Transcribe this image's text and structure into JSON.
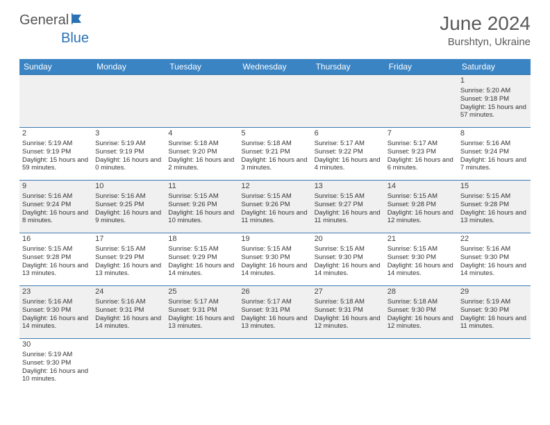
{
  "brand": {
    "part1": "General",
    "part2": "Blue",
    "mark_color": "#2a72b5"
  },
  "title": "June 2024",
  "location": "Burshtyn, Ukraine",
  "colors": {
    "header_bg": "#3a84c4",
    "header_text": "#ffffff",
    "row_alt_bg": "#f0f0f0",
    "row_border": "#3a78b0",
    "text": "#333333",
    "title_text": "#595959"
  },
  "day_headers": [
    "Sunday",
    "Monday",
    "Tuesday",
    "Wednesday",
    "Thursday",
    "Friday",
    "Saturday"
  ],
  "weeks": [
    [
      null,
      null,
      null,
      null,
      null,
      null,
      {
        "n": "1",
        "rise": "Sunrise: 5:20 AM",
        "set": "Sunset: 9:18 PM",
        "dl": "Daylight: 15 hours and 57 minutes."
      }
    ],
    [
      {
        "n": "2",
        "rise": "Sunrise: 5:19 AM",
        "set": "Sunset: 9:19 PM",
        "dl": "Daylight: 15 hours and 59 minutes."
      },
      {
        "n": "3",
        "rise": "Sunrise: 5:19 AM",
        "set": "Sunset: 9:19 PM",
        "dl": "Daylight: 16 hours and 0 minutes."
      },
      {
        "n": "4",
        "rise": "Sunrise: 5:18 AM",
        "set": "Sunset: 9:20 PM",
        "dl": "Daylight: 16 hours and 2 minutes."
      },
      {
        "n": "5",
        "rise": "Sunrise: 5:18 AM",
        "set": "Sunset: 9:21 PM",
        "dl": "Daylight: 16 hours and 3 minutes."
      },
      {
        "n": "6",
        "rise": "Sunrise: 5:17 AM",
        "set": "Sunset: 9:22 PM",
        "dl": "Daylight: 16 hours and 4 minutes."
      },
      {
        "n": "7",
        "rise": "Sunrise: 5:17 AM",
        "set": "Sunset: 9:23 PM",
        "dl": "Daylight: 16 hours and 6 minutes."
      },
      {
        "n": "8",
        "rise": "Sunrise: 5:16 AM",
        "set": "Sunset: 9:24 PM",
        "dl": "Daylight: 16 hours and 7 minutes."
      }
    ],
    [
      {
        "n": "9",
        "rise": "Sunrise: 5:16 AM",
        "set": "Sunset: 9:24 PM",
        "dl": "Daylight: 16 hours and 8 minutes."
      },
      {
        "n": "10",
        "rise": "Sunrise: 5:16 AM",
        "set": "Sunset: 9:25 PM",
        "dl": "Daylight: 16 hours and 9 minutes."
      },
      {
        "n": "11",
        "rise": "Sunrise: 5:15 AM",
        "set": "Sunset: 9:26 PM",
        "dl": "Daylight: 16 hours and 10 minutes."
      },
      {
        "n": "12",
        "rise": "Sunrise: 5:15 AM",
        "set": "Sunset: 9:26 PM",
        "dl": "Daylight: 16 hours and 11 minutes."
      },
      {
        "n": "13",
        "rise": "Sunrise: 5:15 AM",
        "set": "Sunset: 9:27 PM",
        "dl": "Daylight: 16 hours and 11 minutes."
      },
      {
        "n": "14",
        "rise": "Sunrise: 5:15 AM",
        "set": "Sunset: 9:28 PM",
        "dl": "Daylight: 16 hours and 12 minutes."
      },
      {
        "n": "15",
        "rise": "Sunrise: 5:15 AM",
        "set": "Sunset: 9:28 PM",
        "dl": "Daylight: 16 hours and 13 minutes."
      }
    ],
    [
      {
        "n": "16",
        "rise": "Sunrise: 5:15 AM",
        "set": "Sunset: 9:28 PM",
        "dl": "Daylight: 16 hours and 13 minutes."
      },
      {
        "n": "17",
        "rise": "Sunrise: 5:15 AM",
        "set": "Sunset: 9:29 PM",
        "dl": "Daylight: 16 hours and 13 minutes."
      },
      {
        "n": "18",
        "rise": "Sunrise: 5:15 AM",
        "set": "Sunset: 9:29 PM",
        "dl": "Daylight: 16 hours and 14 minutes."
      },
      {
        "n": "19",
        "rise": "Sunrise: 5:15 AM",
        "set": "Sunset: 9:30 PM",
        "dl": "Daylight: 16 hours and 14 minutes."
      },
      {
        "n": "20",
        "rise": "Sunrise: 5:15 AM",
        "set": "Sunset: 9:30 PM",
        "dl": "Daylight: 16 hours and 14 minutes."
      },
      {
        "n": "21",
        "rise": "Sunrise: 5:15 AM",
        "set": "Sunset: 9:30 PM",
        "dl": "Daylight: 16 hours and 14 minutes."
      },
      {
        "n": "22",
        "rise": "Sunrise: 5:16 AM",
        "set": "Sunset: 9:30 PM",
        "dl": "Daylight: 16 hours and 14 minutes."
      }
    ],
    [
      {
        "n": "23",
        "rise": "Sunrise: 5:16 AM",
        "set": "Sunset: 9:30 PM",
        "dl": "Daylight: 16 hours and 14 minutes."
      },
      {
        "n": "24",
        "rise": "Sunrise: 5:16 AM",
        "set": "Sunset: 9:31 PM",
        "dl": "Daylight: 16 hours and 14 minutes."
      },
      {
        "n": "25",
        "rise": "Sunrise: 5:17 AM",
        "set": "Sunset: 9:31 PM",
        "dl": "Daylight: 16 hours and 13 minutes."
      },
      {
        "n": "26",
        "rise": "Sunrise: 5:17 AM",
        "set": "Sunset: 9:31 PM",
        "dl": "Daylight: 16 hours and 13 minutes."
      },
      {
        "n": "27",
        "rise": "Sunrise: 5:18 AM",
        "set": "Sunset: 9:31 PM",
        "dl": "Daylight: 16 hours and 12 minutes."
      },
      {
        "n": "28",
        "rise": "Sunrise: 5:18 AM",
        "set": "Sunset: 9:30 PM",
        "dl": "Daylight: 16 hours and 12 minutes."
      },
      {
        "n": "29",
        "rise": "Sunrise: 5:19 AM",
        "set": "Sunset: 9:30 PM",
        "dl": "Daylight: 16 hours and 11 minutes."
      }
    ],
    [
      {
        "n": "30",
        "rise": "Sunrise: 5:19 AM",
        "set": "Sunset: 9:30 PM",
        "dl": "Daylight: 16 hours and 10 minutes."
      },
      null,
      null,
      null,
      null,
      null,
      null
    ]
  ]
}
